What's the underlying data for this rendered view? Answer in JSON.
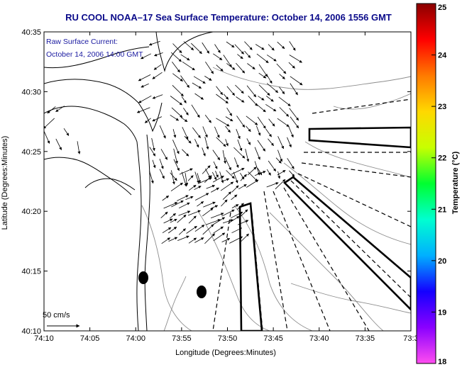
{
  "title": "RU COOL  NOAA–17  Sea Surface Temperature:  October 14, 2006 1556 GMT",
  "annotation": {
    "line1": "Raw Surface Current:",
    "line2": "October 14, 2006 14:00 GMT"
  },
  "scale_label": "50 cm/s",
  "x_axis": {
    "label": "Longitude (Degrees:Minutes)",
    "ticks": [
      "74:10",
      "74:05",
      "74:00",
      "73:55",
      "73:50",
      "73:45",
      "73:40",
      "73:35",
      "73:3"
    ]
  },
  "y_axis": {
    "label": "Latitude (Degrees:Minutes)",
    "ticks": [
      "40:35",
      "40:30",
      "40:25",
      "40:20",
      "40:15",
      "40:10"
    ]
  },
  "colorbar": {
    "label": "Temperature (°C)",
    "ticks": [
      "25",
      "24",
      "23",
      "22",
      "21",
      "20",
      "19",
      "18"
    ],
    "range": [
      18,
      25
    ],
    "stops": [
      "#ff4df0",
      "#8a00ff",
      "#1400ff",
      "#00b0ff",
      "#00ffd0",
      "#00ff30",
      "#c8ff00",
      "#ffd800",
      "#ff7a00",
      "#ff0000",
      "#8a0000"
    ]
  },
  "colors": {
    "title": "#0b0b8a",
    "annotation": "#1a1aa0",
    "frame": "#000000"
  }
}
